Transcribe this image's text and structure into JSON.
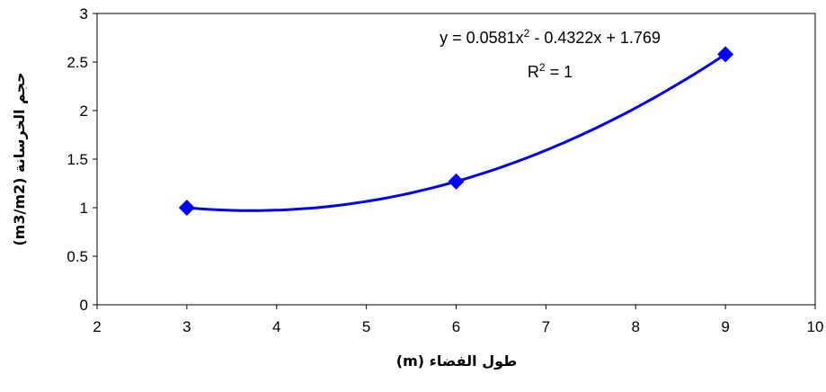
{
  "chart_data": {
    "type": "scatter",
    "title": "",
    "xlabel": "طول الفضاء (m)",
    "ylabel": "حجم الخرسانة (m3/m2)",
    "xlim": [
      2,
      10
    ],
    "ylim": [
      0,
      3
    ],
    "xticks": [
      "2",
      "3",
      "4",
      "5",
      "6",
      "7",
      "8",
      "9",
      "10"
    ],
    "yticks": [
      "0",
      "0.5",
      "1",
      "1.5",
      "2",
      "2.5",
      "3"
    ],
    "grid": false,
    "legend": "none",
    "series": [
      {
        "marker": "diamond",
        "color": "#0000FF",
        "x": [
          3,
          6,
          9
        ],
        "y": [
          1.0,
          1.27,
          2.58
        ]
      }
    ],
    "trendline": {
      "type": "polynomial",
      "order": 2,
      "coefficients": [
        0.0581,
        -0.4322,
        1.769
      ],
      "equation_prefix": "y = 0.0581x",
      "equation_exp": "2",
      "equation_suffix": " - 0.4322x + 1.769",
      "r2_prefix": "R",
      "r2_exp": "2",
      "r2_suffix": " = 1",
      "color": "#0000FF"
    }
  }
}
